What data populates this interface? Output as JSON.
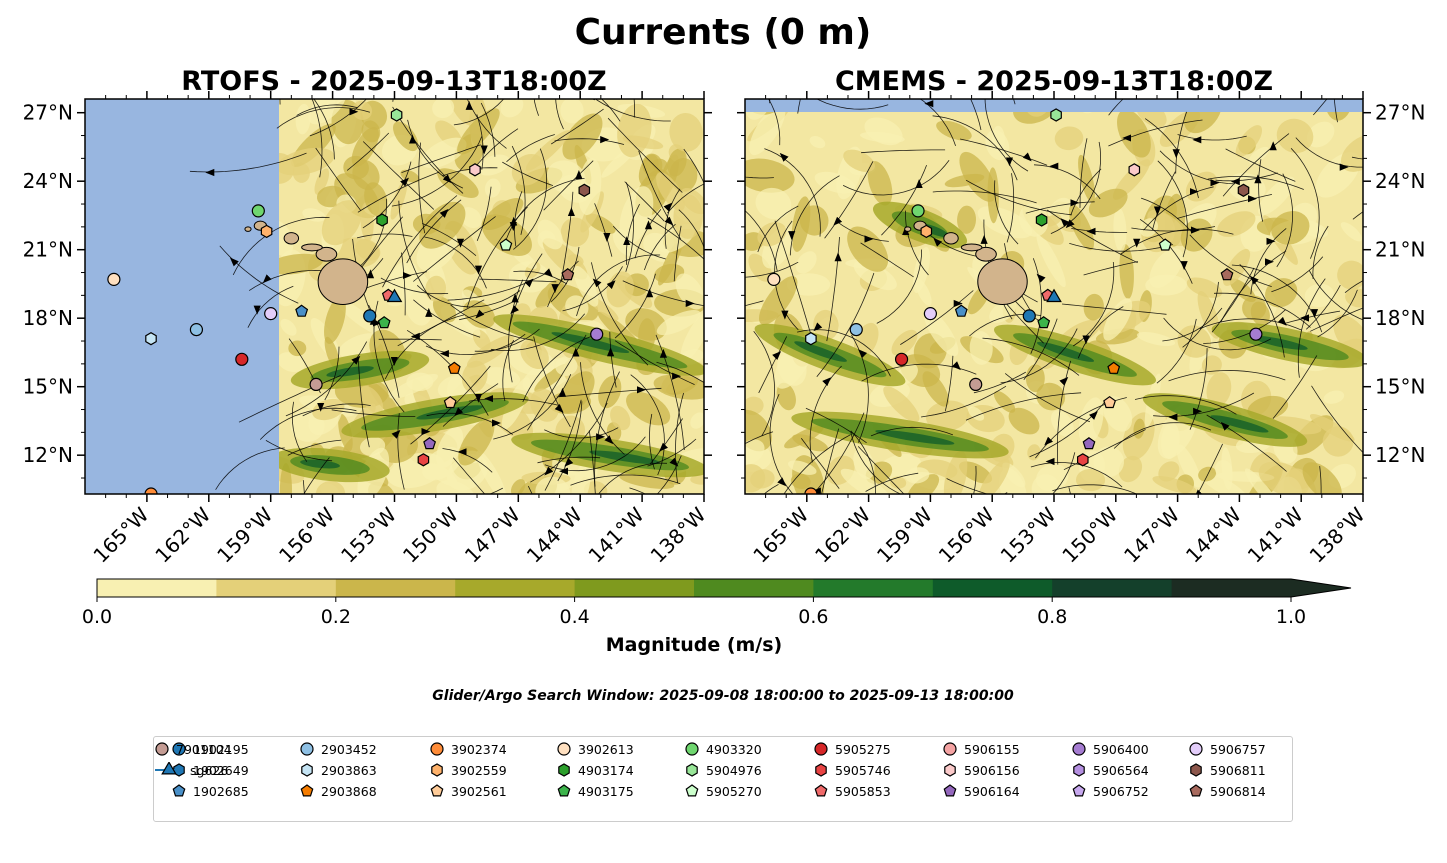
{
  "title": "Currents (0 m)",
  "panels": [
    {
      "title": "RTOFS - 2025-09-13T18:00Z",
      "ylabels_side": "left"
    },
    {
      "title": "CMEMS - 2025-09-13T18:00Z",
      "ylabels_side": "right"
    }
  ],
  "lon_ticks": [
    "165°W",
    "162°W",
    "159°W",
    "156°W",
    "153°W",
    "150°W",
    "147°W",
    "144°W",
    "141°W",
    "138°W"
  ],
  "lat_ticks": [
    "27°N",
    "24°N",
    "21°N",
    "18°N",
    "15°N",
    "12°N"
  ],
  "colorbar": {
    "label": "Magnitude (m/s)",
    "ticks": [
      "0.0",
      "0.2",
      "0.4",
      "0.6",
      "0.8",
      "1.0"
    ],
    "colors": [
      "#f8f0b2",
      "#e4d079",
      "#cbb64b",
      "#a7a92b",
      "#7f9a1e",
      "#4f8a1f",
      "#237a2b",
      "#0e5b2a",
      "#14402b",
      "#1c2c22"
    ],
    "extend": "max"
  },
  "search_window_note": "Glider/Argo Search Window: 2025-09-08 18:00:00 to 2025-09-13 18:00:00",
  "chart_data": {
    "type": "scatter",
    "xlabel": "",
    "ylabel": "",
    "xlim": [
      -168,
      -138
    ],
    "ylim": [
      10.3,
      27.6
    ],
    "grid": false,
    "series": [
      {
        "name": "1902195",
        "marker": "circle",
        "color": "#1f77b4",
        "lon": -154.2,
        "lat": 18.1
      },
      {
        "name": "1902649",
        "marker": "hexagon",
        "color": "#1f77b4",
        "lon": -999,
        "lat": -999
      },
      {
        "name": "1902685",
        "marker": "pentagon",
        "color": "#4a90c8",
        "lon": -157.5,
        "lat": 18.3
      },
      {
        "name": "2903452",
        "marker": "circle",
        "color": "#8ec0e4",
        "lon": -162.6,
        "lat": 17.5
      },
      {
        "name": "2903863",
        "marker": "hexagon",
        "color": "#c5e4f4",
        "lon": -164.8,
        "lat": 17.1
      },
      {
        "name": "2903868",
        "marker": "pentagon",
        "color": "#f57c00",
        "lon": -150.1,
        "lat": 15.8
      },
      {
        "name": "3902374",
        "marker": "circle",
        "color": "#ff8c38",
        "lon": -164.8,
        "lat": 10.3
      },
      {
        "name": "3902559",
        "marker": "hexagon",
        "color": "#ffb26b",
        "lon": -159.2,
        "lat": 21.8
      },
      {
        "name": "3902561",
        "marker": "pentagon",
        "color": "#ffcc99",
        "lon": -150.3,
        "lat": 14.3
      },
      {
        "name": "3902613",
        "marker": "circle",
        "color": "#ffe0c0",
        "lon": -166.6,
        "lat": 19.7
      },
      {
        "name": "4903174",
        "marker": "hexagon",
        "color": "#2ca02c",
        "lon": -153.6,
        "lat": 22.3
      },
      {
        "name": "4903175",
        "marker": "pentagon",
        "color": "#3cb44b",
        "lon": -153.5,
        "lat": 17.8
      },
      {
        "name": "4903320",
        "marker": "circle",
        "color": "#6fd66f",
        "lon": -159.6,
        "lat": 22.7
      },
      {
        "name": "5904976",
        "marker": "hexagon",
        "color": "#98e698",
        "lon": -152.9,
        "lat": 26.9
      },
      {
        "name": "5905270",
        "marker": "pentagon",
        "color": "#ccffcc",
        "lon": -147.6,
        "lat": 21.2
      },
      {
        "name": "5905275",
        "marker": "circle",
        "color": "#d62728",
        "lon": -160.4,
        "lat": 16.2
      },
      {
        "name": "5905746",
        "marker": "hexagon",
        "color": "#e84343",
        "lon": -151.6,
        "lat": 11.8
      },
      {
        "name": "5905853",
        "marker": "pentagon",
        "color": "#f06a6a",
        "lon": -153.3,
        "lat": 19.0
      },
      {
        "name": "5906155",
        "marker": "circle",
        "color": "#f4a3a3",
        "lon": -999,
        "lat": -999
      },
      {
        "name": "5906156",
        "marker": "hexagon",
        "color": "#fbcaca",
        "lon": -149.1,
        "lat": 24.5
      },
      {
        "name": "5906164",
        "marker": "pentagon",
        "color": "#9467bd",
        "lon": -151.3,
        "lat": 12.5
      },
      {
        "name": "5906400",
        "marker": "circle",
        "color": "#a57cd1",
        "lon": -143.2,
        "lat": 17.3
      },
      {
        "name": "5906564",
        "marker": "hexagon",
        "color": "#b48fe0",
        "lon": -999,
        "lat": -999
      },
      {
        "name": "5906752",
        "marker": "pentagon",
        "color": "#c7a8ee",
        "lon": -999,
        "lat": -999
      },
      {
        "name": "5906757",
        "marker": "circle",
        "color": "#e3cdfa",
        "lon": -159.0,
        "lat": 18.2
      },
      {
        "name": "5906811",
        "marker": "hexagon",
        "color": "#8c564b",
        "lon": -143.8,
        "lat": 23.6
      },
      {
        "name": "5906814",
        "marker": "pentagon",
        "color": "#a86a5e",
        "lon": -144.6,
        "lat": 19.9
      },
      {
        "name": "7901104",
        "marker": "circle",
        "color": "#c49c94",
        "lon": -156.8,
        "lat": 15.1
      },
      {
        "name": "sg626",
        "marker": "triangle",
        "color": "#1f77b4",
        "lon": -153.0,
        "lat": 18.9
      }
    ]
  }
}
